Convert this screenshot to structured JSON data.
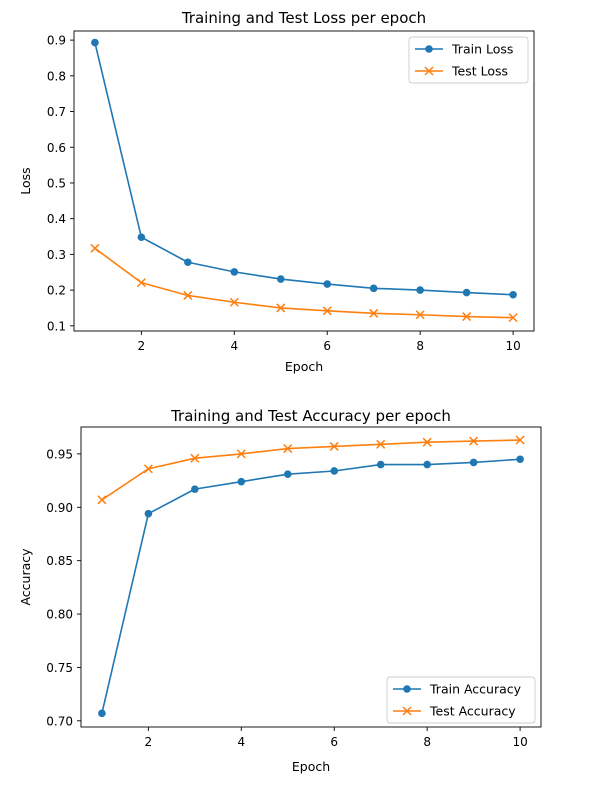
{
  "chart_data": [
    {
      "type": "line",
      "title": "Training and Test Loss per epoch",
      "xlabel": "Epoch",
      "ylabel": "Loss",
      "xlim": [
        0.55,
        10.45
      ],
      "ylim": [
        0.0855,
        0.9255
      ],
      "xticks": [
        2,
        4,
        6,
        8,
        10
      ],
      "yticks": [
        0.1,
        0.2,
        0.3,
        0.4,
        0.5,
        0.6,
        0.7,
        0.8,
        0.9
      ],
      "legend": "top-right",
      "grid": false,
      "x": [
        1,
        2,
        3,
        4,
        5,
        6,
        7,
        8,
        9,
        10
      ],
      "series": [
        {
          "name": "Train Loss",
          "color": "#1f77b4",
          "marker": "circle",
          "values": [
            0.893,
            0.348,
            0.278,
            0.251,
            0.231,
            0.217,
            0.205,
            0.2,
            0.193,
            0.187
          ]
        },
        {
          "name": "Test Loss",
          "color": "#ff7f0e",
          "marker": "x",
          "values": [
            0.317,
            0.221,
            0.185,
            0.166,
            0.15,
            0.142,
            0.135,
            0.131,
            0.126,
            0.123
          ]
        }
      ]
    },
    {
      "type": "line",
      "title": "Training and Test Accuracy per epoch",
      "xlabel": "Epoch",
      "ylabel": "Accuracy",
      "xlim": [
        0.55,
        10.45
      ],
      "ylim": [
        0.6942,
        0.9752
      ],
      "xticks": [
        2,
        4,
        6,
        8,
        10
      ],
      "yticks": [
        0.7,
        0.75,
        0.8,
        0.85,
        0.9,
        0.95
      ],
      "yticklabels": [
        "0.70",
        "0.75",
        "0.80",
        "0.85",
        "0.90",
        "0.95"
      ],
      "legend": "bottom-right",
      "grid": false,
      "x": [
        1,
        2,
        3,
        4,
        5,
        6,
        7,
        8,
        9,
        10
      ],
      "series": [
        {
          "name": "Train Accuracy",
          "color": "#1f77b4",
          "marker": "circle",
          "values": [
            0.707,
            0.894,
            0.917,
            0.924,
            0.931,
            0.934,
            0.94,
            0.94,
            0.942,
            0.945
          ]
        },
        {
          "name": "Test Accuracy",
          "color": "#ff7f0e",
          "marker": "x",
          "values": [
            0.907,
            0.936,
            0.946,
            0.95,
            0.955,
            0.957,
            0.959,
            0.961,
            0.962,
            0.963
          ]
        }
      ]
    }
  ]
}
